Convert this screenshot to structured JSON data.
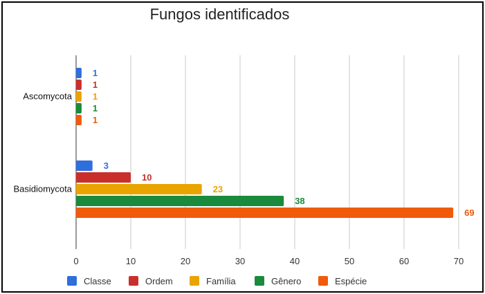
{
  "chart_data": {
    "type": "bar",
    "orientation": "horizontal",
    "title": "Fungos identificados",
    "categories": [
      "Ascomycota",
      "Basidiomycota"
    ],
    "series": [
      {
        "name": "Classe",
        "color": "#2f6fdc",
        "values": [
          1,
          3
        ]
      },
      {
        "name": "Ordem",
        "color": "#c9302c",
        "values": [
          1,
          10
        ]
      },
      {
        "name": "Família",
        "color": "#eaa400",
        "values": [
          1,
          23
        ]
      },
      {
        "name": "Gênero",
        "color": "#1a8a3c",
        "values": [
          1,
          38
        ]
      },
      {
        "name": "Espécie",
        "color": "#f05a0a",
        "values": [
          1,
          69
        ]
      }
    ],
    "xlim": [
      0,
      70
    ],
    "xticks": [
      0,
      10,
      20,
      30,
      40,
      50,
      60,
      70
    ],
    "grid": true,
    "legend_position": "bottom",
    "data_labels": true
  }
}
